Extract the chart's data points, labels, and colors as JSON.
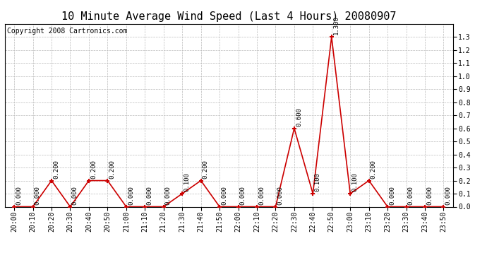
{
  "title": "10 Minute Average Wind Speed (Last 4 Hours) 20080907",
  "copyright": "Copyright 2008 Cartronics.com",
  "line_color": "#cc0000",
  "marker_color": "#cc0000",
  "bg_color": "#ffffff",
  "grid_color": "#bbbbbb",
  "labels": [
    "20:00",
    "20:10",
    "20:20",
    "20:30",
    "20:40",
    "20:50",
    "21:00",
    "21:10",
    "21:20",
    "21:30",
    "21:40",
    "21:50",
    "22:00",
    "22:10",
    "22:20",
    "22:30",
    "22:40",
    "22:50",
    "23:00",
    "23:10",
    "23:20",
    "23:30",
    "23:40",
    "23:50"
  ],
  "values": [
    0.0,
    0.0,
    0.2,
    0.0,
    0.2,
    0.2,
    0.0,
    0.0,
    0.0,
    0.1,
    0.2,
    0.0,
    0.0,
    0.0,
    0.0,
    0.6,
    0.1,
    1.3,
    0.1,
    0.2,
    0.0,
    0.0,
    0.0,
    0.0
  ],
  "ylim": [
    0.0,
    1.4
  ],
  "yticks": [
    0.0,
    0.1,
    0.2,
    0.3,
    0.4,
    0.5,
    0.6,
    0.7,
    0.8,
    0.9,
    1.0,
    1.1,
    1.2,
    1.3
  ],
  "title_fontsize": 11,
  "label_fontsize": 7,
  "annotate_fontsize": 6.5,
  "copyright_fontsize": 7
}
